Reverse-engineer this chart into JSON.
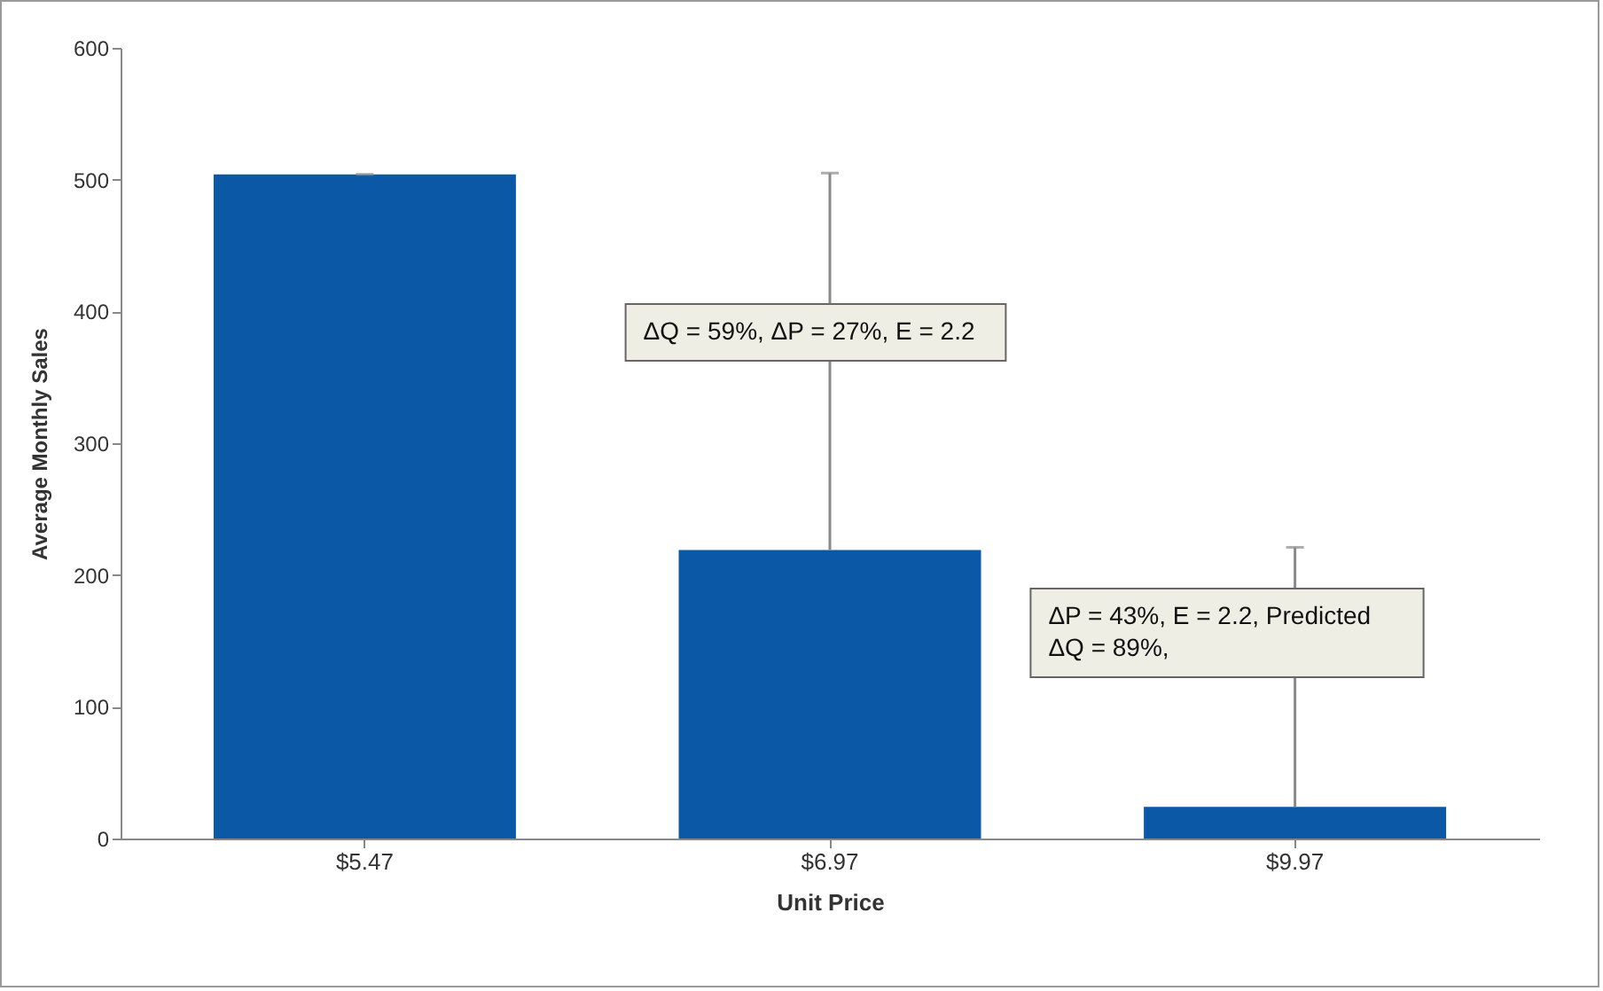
{
  "chart_data": {
    "type": "bar",
    "xlabel": "Unit Price",
    "ylabel": "Average Monthly Sales",
    "categories": [
      "$5.47",
      "$6.97",
      "$9.97"
    ],
    "values": [
      504,
      219,
      24
    ],
    "errors": [
      [
        504,
        504
      ],
      [
        219,
        505
      ],
      [
        24,
        221
      ]
    ],
    "color": "#0b59a6",
    "ylim": [
      0,
      600
    ],
    "yticks": [
      0,
      100,
      200,
      300,
      400,
      500,
      600
    ],
    "grid": false,
    "annotations": [
      "ΔQ = 59%, ΔP = 27%, E = 2.2",
      "ΔP = 43%, E = 2.2, Predicted\nΔQ = 89%,"
    ]
  }
}
